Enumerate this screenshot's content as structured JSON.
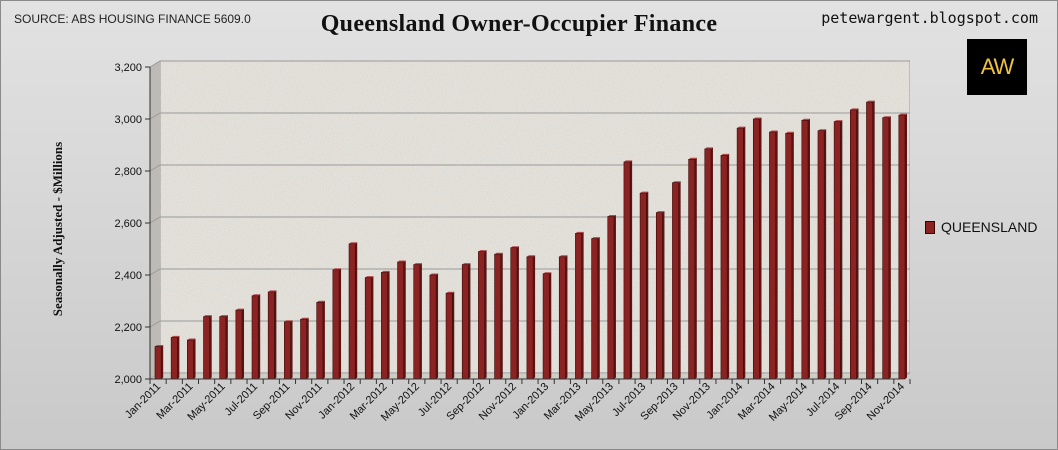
{
  "header": {
    "source": "SOURCE: ABS HOUSING FINANCE 5609.0",
    "title": "Queensland Owner-Occupier Finance",
    "site": "petewargent.blogspot.com",
    "logo_text": "AW"
  },
  "colors": {
    "bar_fill": "#8b2323",
    "bar_stroke": "#3d0a0a",
    "plot_bg": "#ebe9e3",
    "gridline": "#9a9a9a",
    "logo_bg": "#000000",
    "logo_text": "#f0c040"
  },
  "chart_data": {
    "type": "bar",
    "title": "Queensland Owner-Occupier Finance",
    "ylabel": "Seasonally Adjusted - $Millions",
    "xlabel": "",
    "ylim": [
      2000,
      3200
    ],
    "yticks": [
      2000,
      2200,
      2400,
      2600,
      2800,
      3000,
      3200
    ],
    "ytick_labels": [
      "2,000",
      "2,200",
      "2,400",
      "2,600",
      "2,800",
      "3,000",
      "3,200"
    ],
    "grid": true,
    "legend": "right",
    "categories": [
      "Jan-2011",
      "Feb-2011",
      "Mar-2011",
      "Apr-2011",
      "May-2011",
      "Jun-2011",
      "Jul-2011",
      "Aug-2011",
      "Sep-2011",
      "Oct-2011",
      "Nov-2011",
      "Dec-2011",
      "Jan-2012",
      "Feb-2012",
      "Mar-2012",
      "Apr-2012",
      "May-2012",
      "Jun-2012",
      "Jul-2012",
      "Aug-2012",
      "Sep-2012",
      "Oct-2012",
      "Nov-2012",
      "Dec-2012",
      "Jan-2013",
      "Feb-2013",
      "Mar-2013",
      "Apr-2013",
      "May-2013",
      "Jun-2013",
      "Jul-2013",
      "Aug-2013",
      "Sep-2013",
      "Oct-2013",
      "Nov-2013",
      "Dec-2013",
      "Jan-2014",
      "Feb-2014",
      "Mar-2014",
      "Apr-2014",
      "May-2014",
      "Jun-2014",
      "Jul-2014",
      "Aug-2014",
      "Sep-2014",
      "Oct-2014",
      "Nov-2014"
    ],
    "tick_labels_shown": [
      "Jan-2011",
      "Mar-2011",
      "May-2011",
      "Jul-2011",
      "Sep-2011",
      "Nov-2011",
      "Jan-2012",
      "Mar-2012",
      "May-2012",
      "Jul-2012",
      "Sep-2012",
      "Nov-2012",
      "Jan-2013",
      "Mar-2013",
      "May-2013",
      "Jul-2013",
      "Sep-2013",
      "Nov-2013",
      "Jan-2014",
      "Mar-2014",
      "May-2014",
      "Jul-2014",
      "Sep-2014",
      "Nov-2014"
    ],
    "series": [
      {
        "name": "QUEENSLAND",
        "values": [
          2125,
          2160,
          2150,
          2240,
          2240,
          2265,
          2320,
          2335,
          2220,
          2230,
          2295,
          2420,
          2520,
          2390,
          2410,
          2450,
          2440,
          2400,
          2330,
          2440,
          2490,
          2480,
          2505,
          2470,
          2405,
          2470,
          2560,
          2540,
          2625,
          2835,
          2715,
          2640,
          2755,
          2845,
          2885,
          2860,
          2965,
          3000,
          2950,
          2945,
          2995,
          2955,
          2990,
          3035,
          3065,
          3005,
          3015
        ]
      }
    ]
  }
}
